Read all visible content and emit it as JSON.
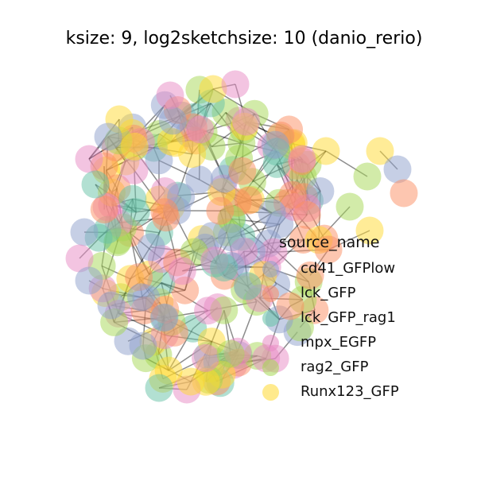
{
  "chart_data": {
    "type": "network",
    "title": "ksize: 9, log2sketchsize: 10 (danio_rerio)",
    "legend": {
      "title": "source_name",
      "placement": "right",
      "entries": [
        {
          "label": "cd41_GFPlow",
          "color": "#8da0cb"
        },
        {
          "label": "lck_GFP",
          "color": "#fc8d62"
        },
        {
          "label": "lck_GFP_rag1",
          "color": "#66c2a5"
        },
        {
          "label": "mpx_EGFP",
          "color": "#e78ac3"
        },
        {
          "label": "rag2_GFP",
          "color": "#a6d854"
        },
        {
          "label": "Runx123_GFP",
          "color": "#ffd92f"
        }
      ]
    },
    "node_alpha": 0.5,
    "edge_color": "#000000",
    "axes_visible": false
  }
}
